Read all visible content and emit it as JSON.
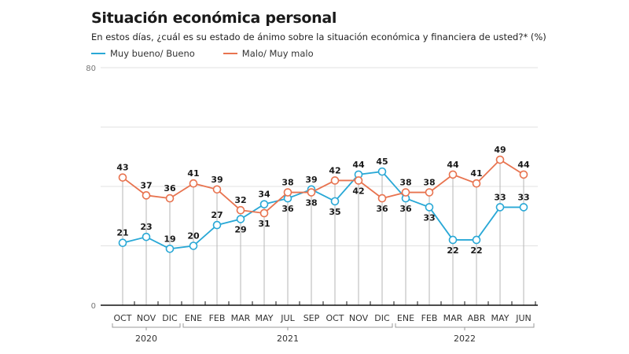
{
  "chart_data": {
    "type": "line",
    "title": "Situación económica personal",
    "subtitle": "En estos días, ¿cuál es su estado de ánimo sobre la situación económica y financiera de usted?* (%)",
    "xlabel": "",
    "ylabel": "",
    "ylim": [
      0,
      80
    ],
    "yticks": [
      "0",
      "80"
    ],
    "gridlines": [
      0,
      20,
      40,
      60,
      80
    ],
    "grid": true,
    "legend_position": "top-left",
    "categories": [
      "OCT",
      "NOV",
      "DIC",
      "ENE",
      "FEB",
      "MAR",
      "MAY",
      "JUL",
      "SEP",
      "OCT",
      "NOV",
      "DIC",
      "ENE",
      "FEB",
      "MAR",
      "ABR",
      "MAY",
      "JUN"
    ],
    "year_groups": [
      {
        "label": "2020",
        "start": 0,
        "end": 2
      },
      {
        "label": "2021",
        "start": 3,
        "end": 11
      },
      {
        "label": "2022",
        "start": 12,
        "end": 17
      }
    ],
    "series": [
      {
        "name": "Muy bueno/ Bueno",
        "color": "#29a8d6",
        "values": [
          21,
          23,
          19,
          20,
          27,
          29,
          34,
          36,
          39,
          35,
          44,
          45,
          36,
          33,
          22,
          22,
          33,
          33
        ]
      },
      {
        "name": "Malo/ Muy malo",
        "color": "#e8734f",
        "values": [
          43,
          37,
          36,
          41,
          39,
          32,
          31,
          38,
          38,
          42,
          42,
          36,
          38,
          38,
          44,
          41,
          49,
          44
        ]
      }
    ]
  }
}
